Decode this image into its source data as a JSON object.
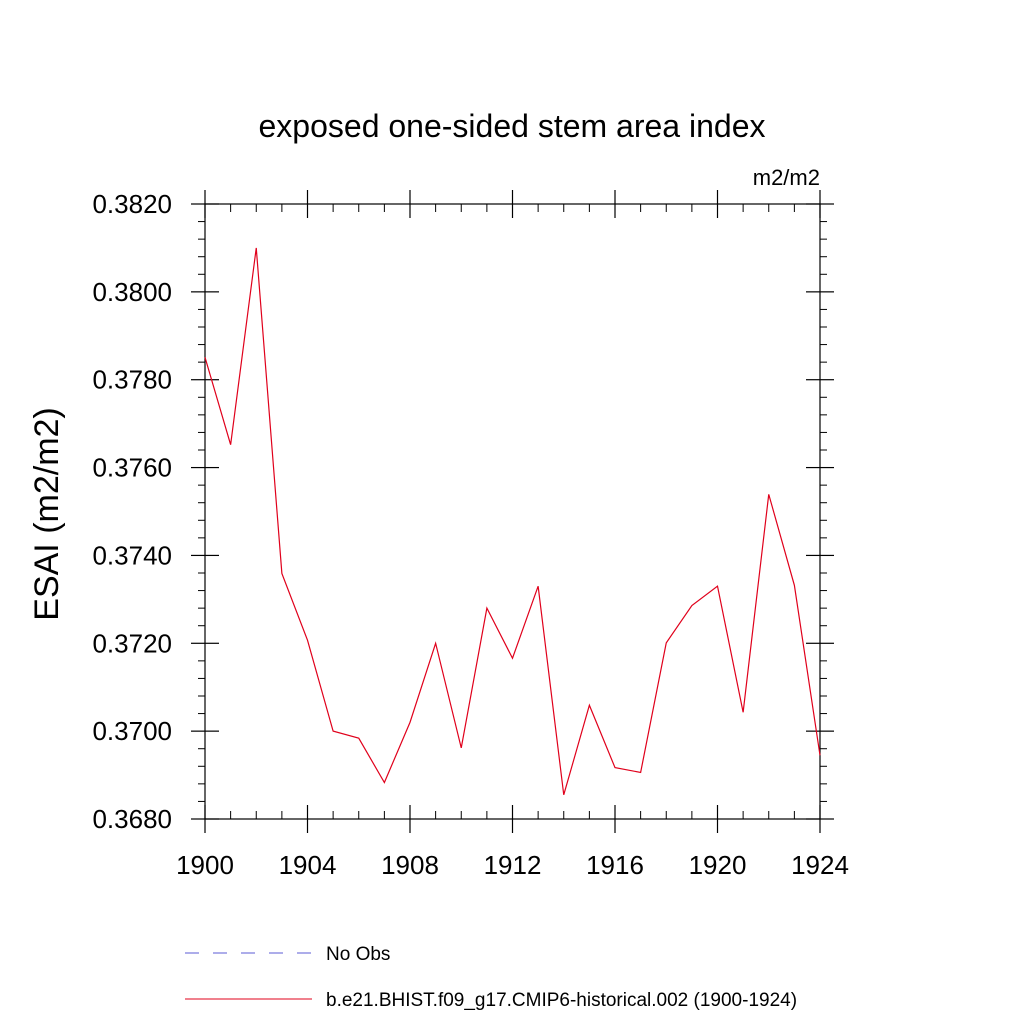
{
  "chart_data": {
    "type": "line",
    "title": "exposed one-sided stem area index",
    "units": "m2/m2",
    "ylabel": "ESAI  (m2/m2)",
    "xlabel": "",
    "xlim": [
      1900,
      1924
    ],
    "ylim": [
      0.368,
      0.382
    ],
    "xticks": [
      1900,
      1904,
      1908,
      1912,
      1916,
      1920,
      1924
    ],
    "xtick_labels": [
      "1900",
      "1904",
      "1908",
      "1912",
      "1916",
      "1920",
      "1924"
    ],
    "yticks": [
      0.368,
      0.37,
      0.372,
      0.374,
      0.376,
      0.378,
      0.38,
      0.382
    ],
    "ytick_labels": [
      "0.3680",
      "0.3700",
      "0.3720",
      "0.3740",
      "0.3760",
      "0.3780",
      "0.3800",
      "0.3820"
    ],
    "grid": false,
    "legend_position": "bottom",
    "series": [
      {
        "name": "No Obs",
        "color": "#5b5bd6",
        "style": "dashed",
        "x": [],
        "values": []
      },
      {
        "name": "b.e21.BHIST.f09_g17.CMIP6-historical.002 (1900-1924)",
        "color": "#e0001b",
        "style": "solid",
        "x": [
          1900,
          1901,
          1902,
          1903,
          1904,
          1905,
          1906,
          1907,
          1908,
          1909,
          1910,
          1911,
          1912,
          1913,
          1914,
          1915,
          1916,
          1917,
          1918,
          1919,
          1920,
          1921,
          1922,
          1923,
          1924
        ],
        "values": [
          0.37851,
          0.37652,
          0.381,
          0.37359,
          0.37207,
          0.37,
          0.36984,
          0.36883,
          0.3702,
          0.372,
          0.36962,
          0.3728,
          0.37166,
          0.3733,
          0.36855,
          0.37059,
          0.36917,
          0.36906,
          0.37201,
          0.37286,
          0.3733,
          0.37043,
          0.37539,
          0.37332,
          0.36945
        ]
      }
    ]
  }
}
